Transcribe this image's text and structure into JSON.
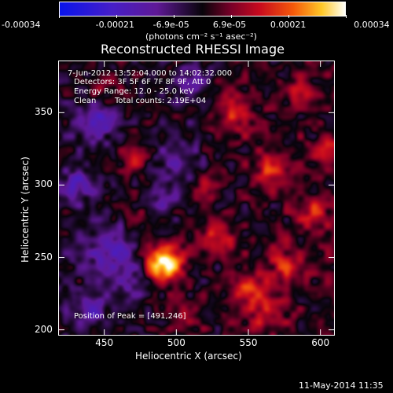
{
  "colorbar": {
    "ticks": [
      "-0.00034",
      "-0.00021",
      "-6.9e-05",
      "6.9e-05",
      "0.00021",
      "0.00034"
    ],
    "unit_label": "(photons cm⁻² s⁻¹ asec⁻²)"
  },
  "chart_data": {
    "type": "heatmap",
    "title": "Reconstructed RHESSI Image",
    "xlabel": "Heliocentric X (arcsec)",
    "ylabel": "Heliocentric Y (arcsec)",
    "xlim": [
      418,
      610
    ],
    "ylim": [
      196,
      386
    ],
    "x_ticks": [
      "450",
      "500",
      "550",
      "600"
    ],
    "y_ticks": [
      "200",
      "250",
      "300",
      "350"
    ],
    "colormap": "rhessi-diverging (blue-purple-black-red-yellow-white)",
    "value_range": [
      -0.00034,
      0.00034
    ],
    "peak_position": [
      491,
      246
    ],
    "annotations": {
      "time": "7-Jun-2012 13:52:04.000 to 14:02:32.000",
      "detectors": "Detectors: 3F 5F 6F 7F 8F 9F, Att 0",
      "energy": "Energy Range: 12.0 - 25.0 keV",
      "method": "Clean",
      "total_counts": "Total counts: 2.19E+04",
      "peak": "Position of Peak = [491,246]"
    }
  },
  "footer": {
    "timestamp": "11-May-2014 11:35"
  }
}
